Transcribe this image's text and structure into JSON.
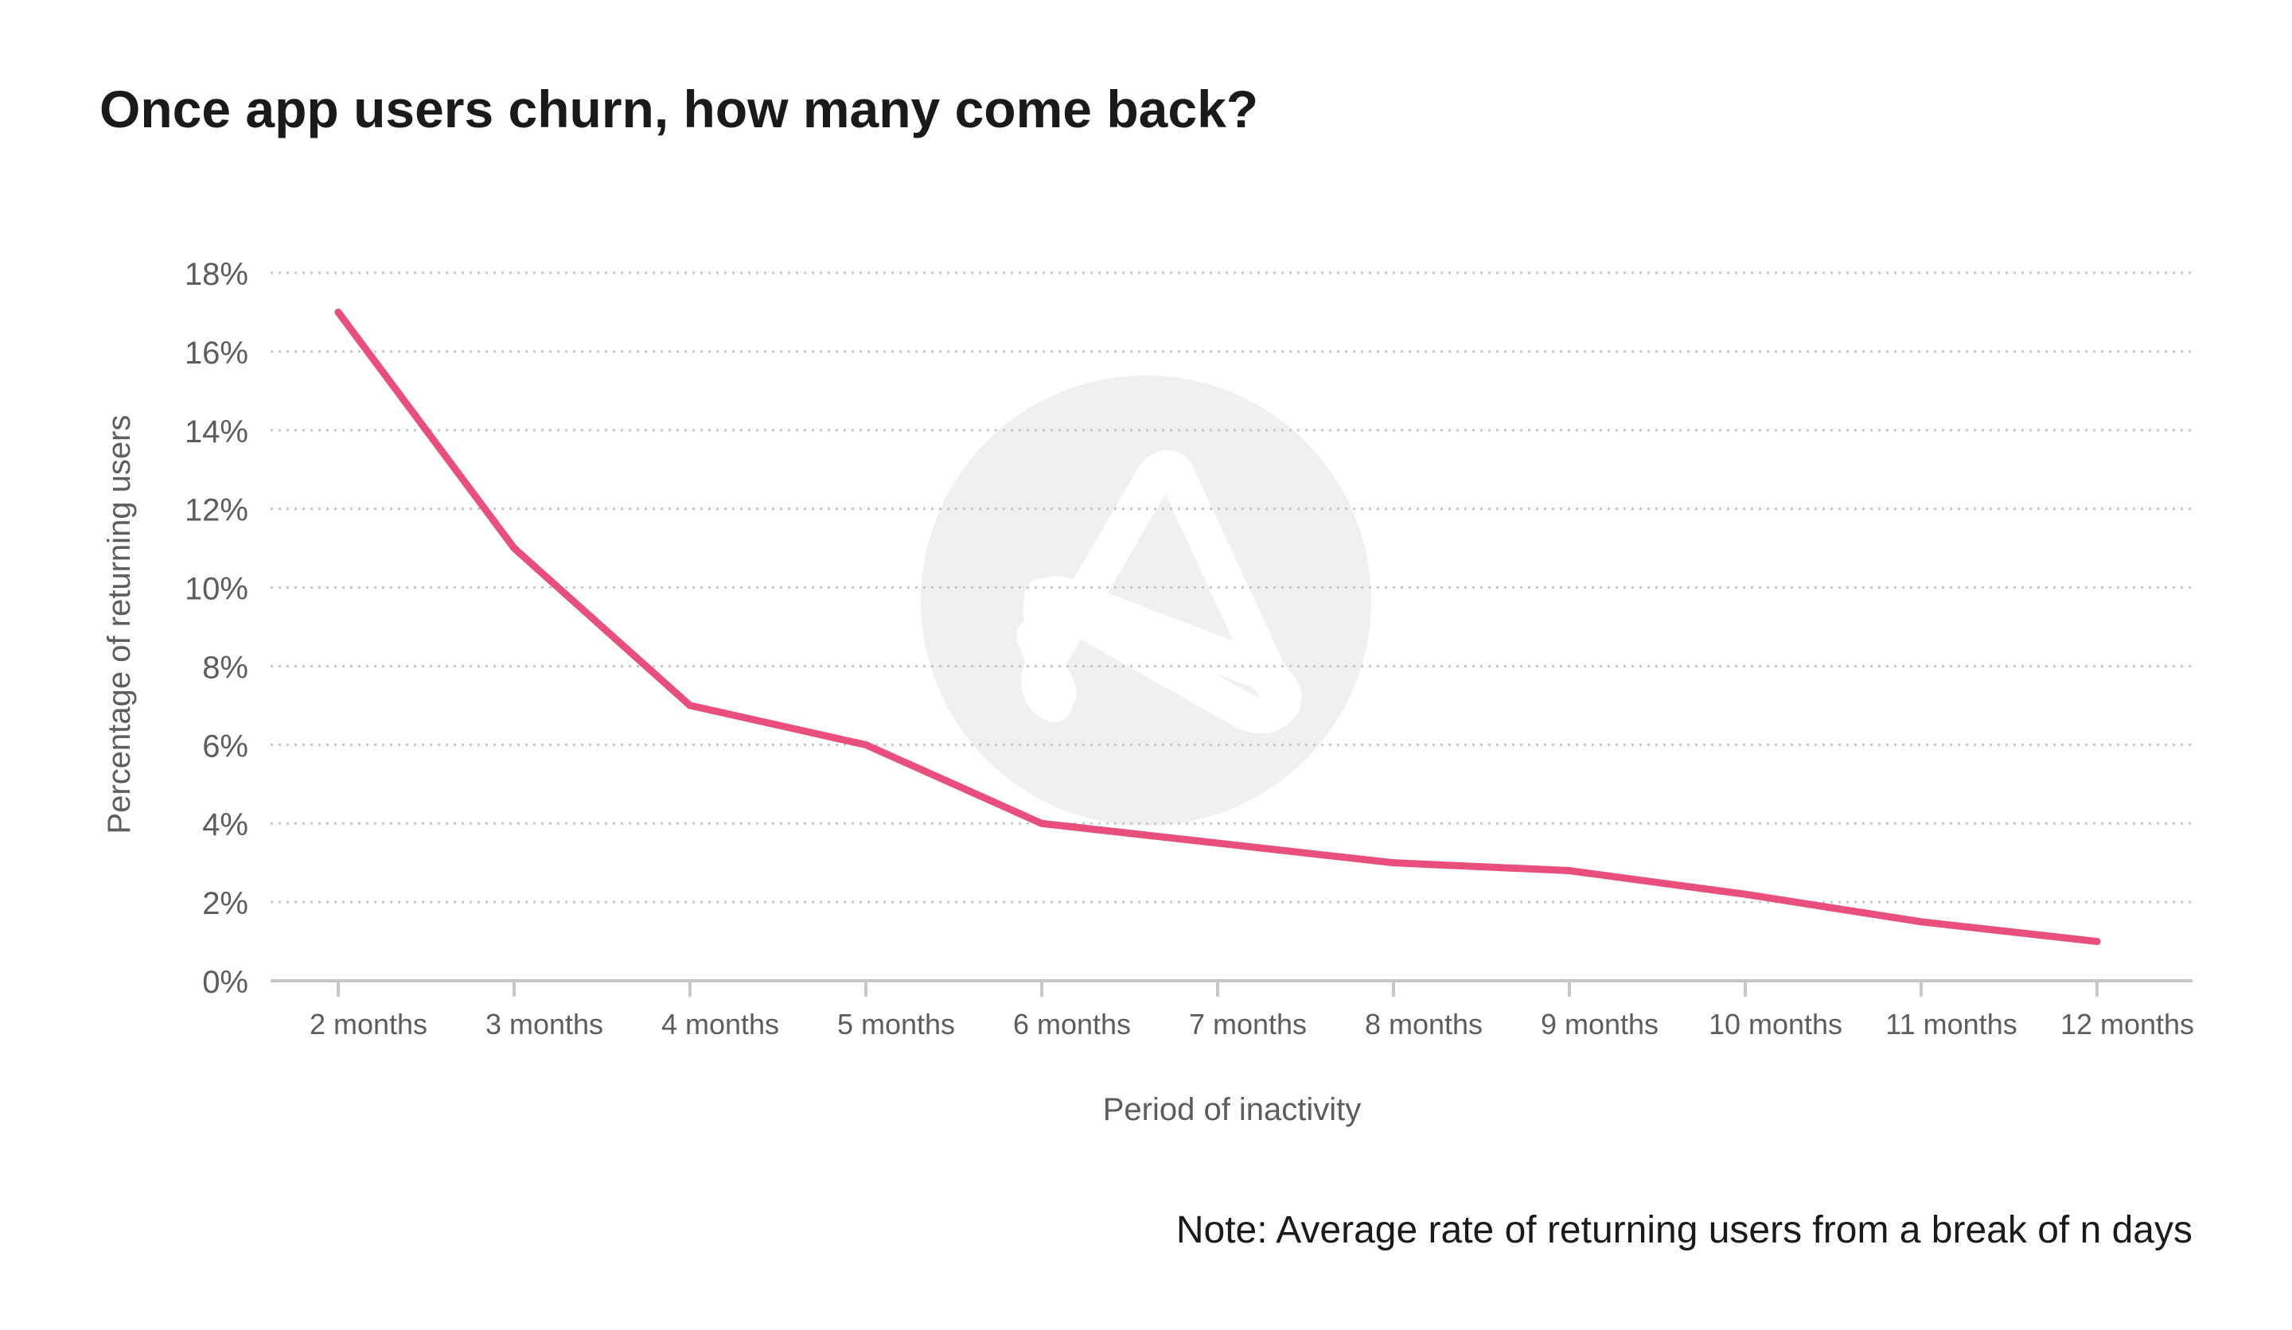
{
  "chart_data": {
    "type": "line",
    "title": "Once app users churn, how many come back?",
    "xlabel": "Period of inactivity",
    "ylabel": "Percentage of returning users",
    "note": "Note: Average rate of returning users from a break of n days",
    "categories": [
      "2 months",
      "3 months",
      "4 months",
      "5 months",
      "6 months",
      "7 months",
      "8 months",
      "9 months",
      "10 months",
      "11 months",
      "12 months"
    ],
    "series": [
      {
        "values": [
          17,
          11,
          7,
          6,
          4,
          3.5,
          3,
          2.8,
          2.2,
          1.5,
          1.0
        ],
        "color": "#e94f7d"
      }
    ],
    "yticks": [
      "0%",
      "2%",
      "4%",
      "6%",
      "8%",
      "10%",
      "12%",
      "14%",
      "16%",
      "18%"
    ],
    "ylim": [
      0,
      18
    ],
    "grid": true,
    "watermark": "logo-icon"
  },
  "colors": {
    "line": "#e94f7d",
    "title": "#1a1a1a",
    "axis_text": "#5f5b5e",
    "grid": "#c9c6c8",
    "axis": "#c9c6c8",
    "watermark": "#f1eff0",
    "panel": "#fcfbfc"
  }
}
